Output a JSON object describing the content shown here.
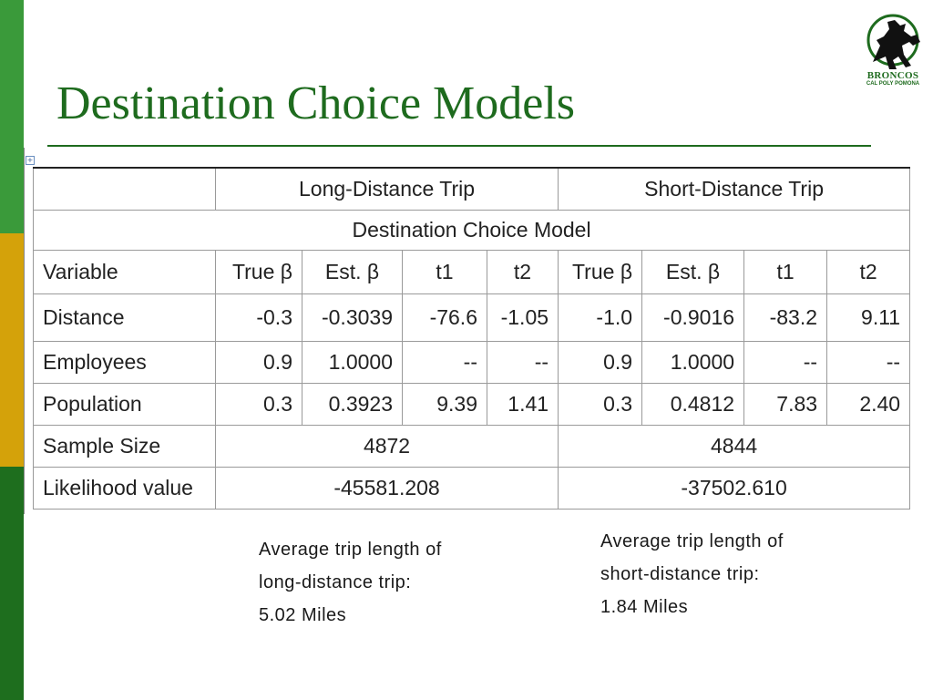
{
  "slide": {
    "title": "Destination Choice Models",
    "logo": {
      "name": "BRONCOS",
      "sub": "CAL POLY POMONA",
      "icon": "bronco-horse-icon"
    }
  },
  "table": {
    "group_headers": [
      "Long-Distance Trip",
      "Short-Distance Trip"
    ],
    "model_header": "Destination Choice Model",
    "column_headers": [
      "Variable",
      "True β",
      "Est. β",
      "t1",
      "t2",
      "True β",
      "Est. β",
      "t1",
      "t2"
    ],
    "rows": [
      {
        "variable": "Distance",
        "values": [
          "-0.3",
          "-0.3039",
          "-76.6",
          "-1.05",
          "-1.0",
          "-0.9016",
          "-83.2",
          "9.11"
        ]
      },
      {
        "variable": "Employees",
        "values": [
          "0.9",
          "1.0000",
          "--",
          "--",
          "0.9",
          "1.0000",
          "--",
          "--"
        ]
      },
      {
        "variable": "Population",
        "values": [
          "0.3",
          "0.3923",
          "9.39",
          "1.41",
          "0.3",
          "0.4812",
          "7.83",
          "2.40"
        ]
      }
    ],
    "sample_size": {
      "label": "Sample Size",
      "long": "4872",
      "short": "4844"
    },
    "likelihood": {
      "label": "Likelihood value",
      "long": "-45581.208",
      "short": "-37502.610"
    }
  },
  "notes": {
    "long": [
      "Average trip length of",
      "long-distance trip:",
      "5.02 Miles"
    ],
    "short": [
      "Average trip length of",
      "short-distance trip:",
      "1.84 Miles"
    ]
  },
  "colors": {
    "title": "#1e6b1e",
    "stripe_top": "#3a9a3a",
    "stripe_mid": "#d4a20a",
    "stripe_bottom": "#1e6e1e"
  }
}
